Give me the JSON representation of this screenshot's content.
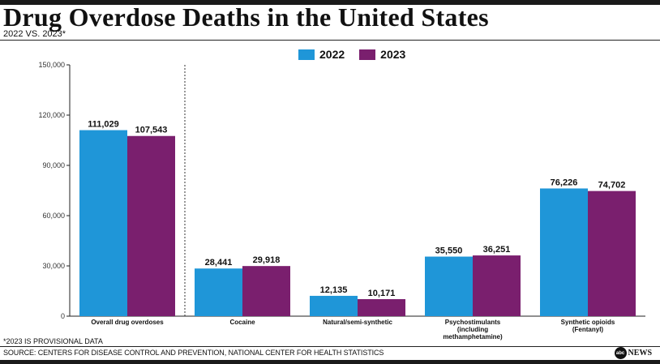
{
  "chart_data": {
    "type": "bar",
    "title": "Drug Overdose Deaths in the United States",
    "subtitle": "2022 VS. 2023*",
    "categories": [
      [
        "Overall drug overdoses"
      ],
      [
        "Cocaine"
      ],
      [
        "Natural/semi-synthetic"
      ],
      [
        "Psychostimulants",
        "(including",
        "methamphetamine)"
      ],
      [
        "Synthetic opioids",
        "(Fentanyl)"
      ]
    ],
    "series": [
      {
        "name": "2022",
        "color": "#1f96d8",
        "values": [
          111029,
          28441,
          12135,
          35550,
          76226
        ],
        "labels": [
          "111,029",
          "28,441",
          "12,135",
          "35,550",
          "76,226"
        ]
      },
      {
        "name": "2023",
        "color": "#7a1f6e",
        "values": [
          107543,
          29918,
          10171,
          36251,
          74702
        ],
        "labels": [
          "107,543",
          "29,918",
          "10,171",
          "36,251",
          "74,702"
        ]
      }
    ],
    "ylim": [
      0,
      150000
    ],
    "yticks": [
      0,
      30000,
      60000,
      90000,
      120000,
      150000
    ],
    "ytick_labels": [
      "0",
      "30,000",
      "60,000",
      "90,000",
      "120,000",
      "150,000"
    ],
    "grid": false,
    "legend": "top-center",
    "separator_after_category": 0
  },
  "footnote": "*2023 IS PROVISIONAL DATA",
  "source": "SOURCE: CENTERS FOR DISEASE CONTROL AND PREVENTION, NATIONAL CENTER FOR HEALTH STATISTICS",
  "logo": {
    "mark": "abc",
    "text": "NEWS"
  }
}
